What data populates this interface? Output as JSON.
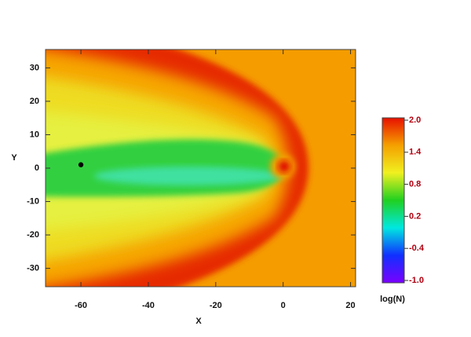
{
  "chart_data": {
    "type": "heatmap",
    "xlabel": "X",
    "ylabel": "Y",
    "xlim": [
      -70.5,
      21.5
    ],
    "ylim": [
      -35.5,
      35.5
    ],
    "xticks": [
      -60,
      -40,
      -20,
      0,
      20
    ],
    "yticks": [
      -30,
      -20,
      -10,
      0,
      10,
      20,
      30
    ],
    "points": {
      "x": [
        -60
      ],
      "y": [
        1
      ],
      "color": "#000000"
    },
    "colorbar": {
      "label": "log(N)",
      "lim": [
        -1,
        2
      ],
      "ticks": [
        {
          "value": -1,
          "label": "-1.0"
        },
        -0.4,
        0.2,
        0.8,
        1.4,
        {
          "value": 2,
          "label": "2.0"
        }
      ],
      "colors": [
        "#7a00ff",
        "#1030ff",
        "#00e8e0",
        "#20d020",
        "#f0f020",
        "#f5a000",
        "#e81000"
      ]
    }
  }
}
